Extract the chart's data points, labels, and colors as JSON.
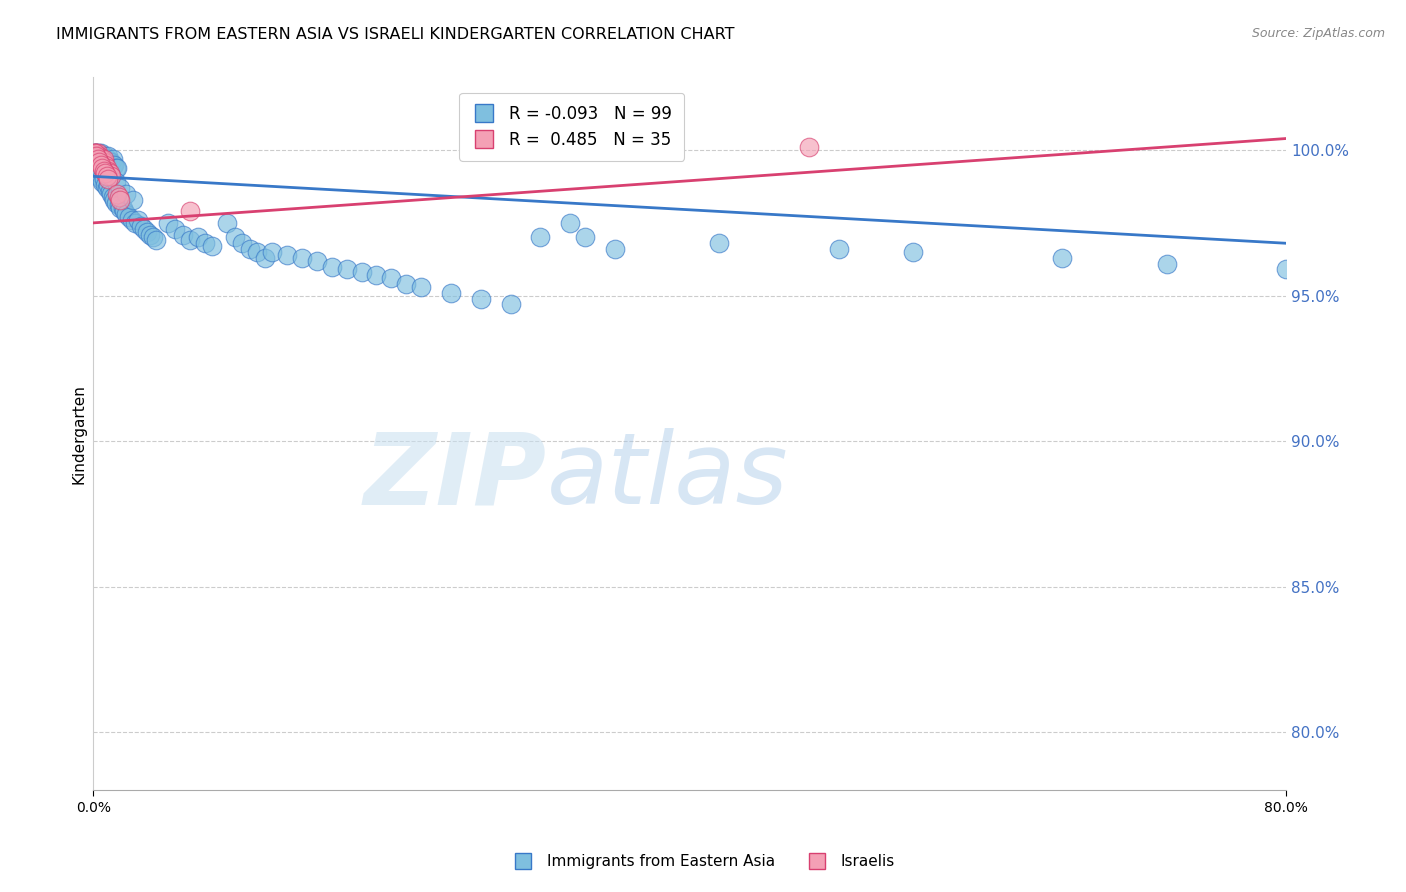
{
  "title": "IMMIGRANTS FROM EASTERN ASIA VS ISRAELI KINDERGARTEN CORRELATION CHART",
  "source": "Source: ZipAtlas.com",
  "ylabel": "Kindergarten",
  "legend_labels": [
    "Immigrants from Eastern Asia",
    "Israelis"
  ],
  "blue_R": -0.093,
  "blue_N": 99,
  "pink_R": 0.485,
  "pink_N": 35,
  "blue_color": "#7fbfdf",
  "pink_color": "#f4a0b5",
  "blue_line_color": "#3878c8",
  "pink_line_color": "#d84070",
  "watermark_zip": "ZIP",
  "watermark_atlas": "atlas",
  "xmin": 0.0,
  "xmax": 0.8,
  "ymin": 0.78,
  "ymax": 1.025,
  "yticks": [
    0.8,
    0.85,
    0.9,
    0.95,
    1.0
  ],
  "xticks": [
    0.0,
    0.8
  ],
  "blue_trend_x": [
    0.0,
    0.8
  ],
  "blue_trend_y": [
    0.991,
    0.968
  ],
  "pink_trend_x": [
    0.0,
    0.8
  ],
  "pink_trend_y": [
    0.975,
    1.004
  ],
  "blue_x": [
    0.002,
    0.003,
    0.004,
    0.004,
    0.005,
    0.006,
    0.006,
    0.007,
    0.008,
    0.008,
    0.009,
    0.01,
    0.01,
    0.011,
    0.012,
    0.013,
    0.013,
    0.014,
    0.015,
    0.016,
    0.002,
    0.003,
    0.003,
    0.004,
    0.005,
    0.006,
    0.007,
    0.008,
    0.009,
    0.01,
    0.011,
    0.012,
    0.013,
    0.014,
    0.015,
    0.017,
    0.018,
    0.02,
    0.021,
    0.022,
    0.024,
    0.026,
    0.028,
    0.03,
    0.032,
    0.034,
    0.036,
    0.038,
    0.04,
    0.042,
    0.05,
    0.055,
    0.06,
    0.065,
    0.07,
    0.075,
    0.08,
    0.09,
    0.095,
    0.1,
    0.105,
    0.11,
    0.115,
    0.12,
    0.13,
    0.14,
    0.15,
    0.16,
    0.17,
    0.18,
    0.19,
    0.2,
    0.21,
    0.22,
    0.24,
    0.26,
    0.28,
    0.3,
    0.32,
    0.35,
    0.001,
    0.002,
    0.003,
    0.004,
    0.005,
    0.006,
    0.008,
    0.01,
    0.012,
    0.015,
    0.018,
    0.022,
    0.027,
    0.33,
    0.42,
    0.5,
    0.55,
    0.65,
    0.72,
    0.8
  ],
  "blue_y": [
    0.999,
    0.998,
    0.999,
    0.998,
    0.999,
    0.997,
    0.998,
    0.997,
    0.997,
    0.998,
    0.996,
    0.997,
    0.998,
    0.996,
    0.996,
    0.995,
    0.997,
    0.995,
    0.994,
    0.994,
    0.993,
    0.992,
    0.994,
    0.991,
    0.99,
    0.989,
    0.99,
    0.988,
    0.987,
    0.988,
    0.986,
    0.985,
    0.984,
    0.983,
    0.982,
    0.981,
    0.98,
    0.98,
    0.979,
    0.978,
    0.977,
    0.976,
    0.975,
    0.976,
    0.974,
    0.973,
    0.972,
    0.971,
    0.97,
    0.969,
    0.975,
    0.973,
    0.971,
    0.969,
    0.97,
    0.968,
    0.967,
    0.975,
    0.97,
    0.968,
    0.966,
    0.965,
    0.963,
    0.965,
    0.964,
    0.963,
    0.962,
    0.96,
    0.959,
    0.958,
    0.957,
    0.956,
    0.954,
    0.953,
    0.951,
    0.949,
    0.947,
    0.97,
    0.975,
    0.966,
    0.999,
    0.999,
    0.998,
    0.997,
    0.996,
    0.995,
    0.993,
    0.992,
    0.991,
    0.989,
    0.987,
    0.985,
    0.983,
    0.97,
    0.968,
    0.966,
    0.965,
    0.963,
    0.961,
    0.959
  ],
  "pink_x": [
    0.001,
    0.001,
    0.002,
    0.002,
    0.003,
    0.003,
    0.003,
    0.004,
    0.004,
    0.005,
    0.005,
    0.006,
    0.006,
    0.007,
    0.007,
    0.008,
    0.009,
    0.01,
    0.011,
    0.012,
    0.001,
    0.002,
    0.003,
    0.004,
    0.005,
    0.006,
    0.007,
    0.008,
    0.009,
    0.01,
    0.016,
    0.017,
    0.018,
    0.065,
    0.48
  ],
  "pink_y": [
    0.999,
    0.999,
    0.999,
    0.998,
    0.998,
    0.999,
    0.998,
    0.997,
    0.998,
    0.997,
    0.997,
    0.996,
    0.997,
    0.996,
    0.997,
    0.995,
    0.994,
    0.993,
    0.992,
    0.991,
    0.999,
    0.998,
    0.997,
    0.996,
    0.995,
    0.994,
    0.993,
    0.992,
    0.991,
    0.99,
    0.985,
    0.984,
    0.983,
    0.979,
    1.001
  ]
}
